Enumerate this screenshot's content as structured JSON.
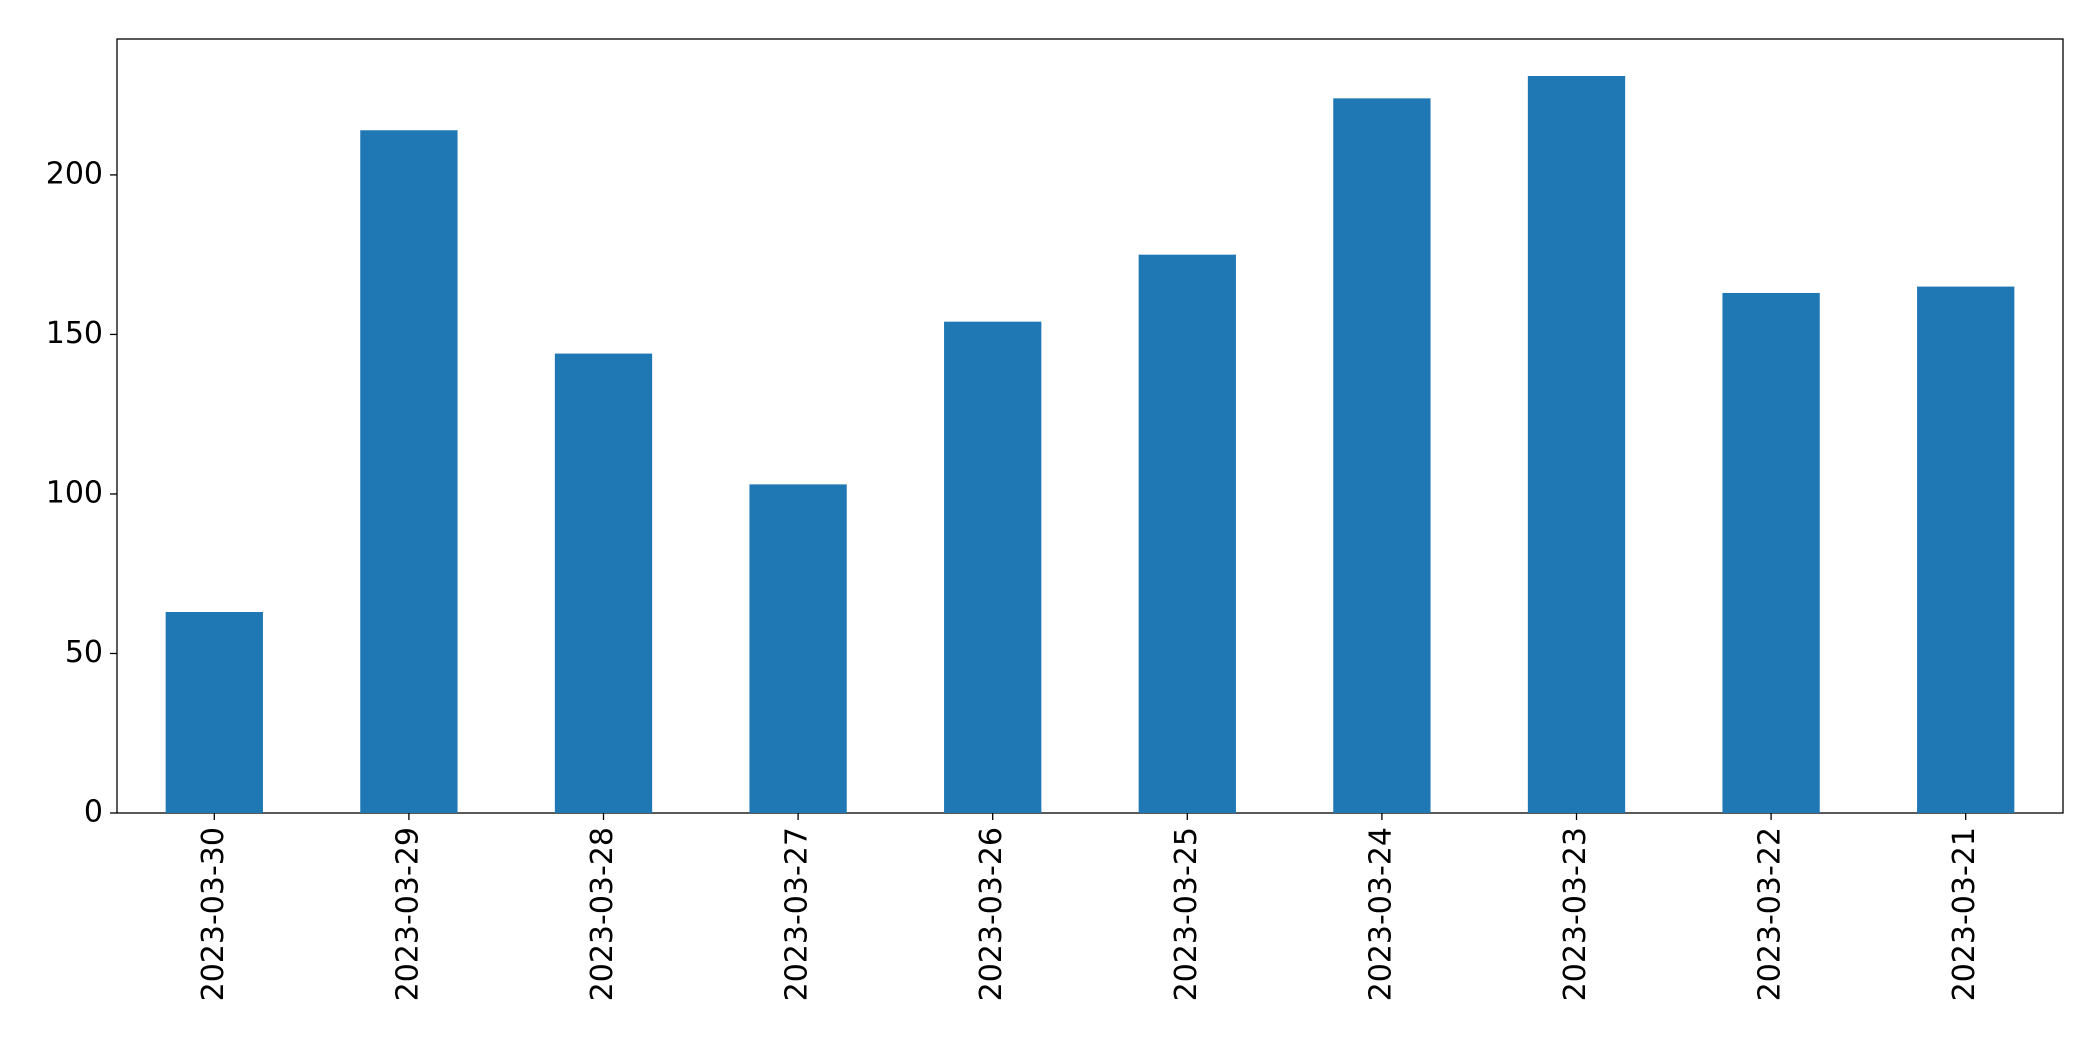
{
  "chart_data": {
    "type": "bar",
    "categories": [
      "2023-03-30",
      "2023-03-29",
      "2023-03-28",
      "2023-03-27",
      "2023-03-26",
      "2023-03-25",
      "2023-03-24",
      "2023-03-23",
      "2023-03-22",
      "2023-03-21"
    ],
    "values": [
      63,
      214,
      144,
      103,
      154,
      175,
      224,
      231,
      163,
      165
    ],
    "color": "#1f77b4",
    "ylim": [
      0,
      242.6
    ],
    "yticks": [
      0,
      50,
      100,
      150,
      200
    ],
    "grid": false
  }
}
